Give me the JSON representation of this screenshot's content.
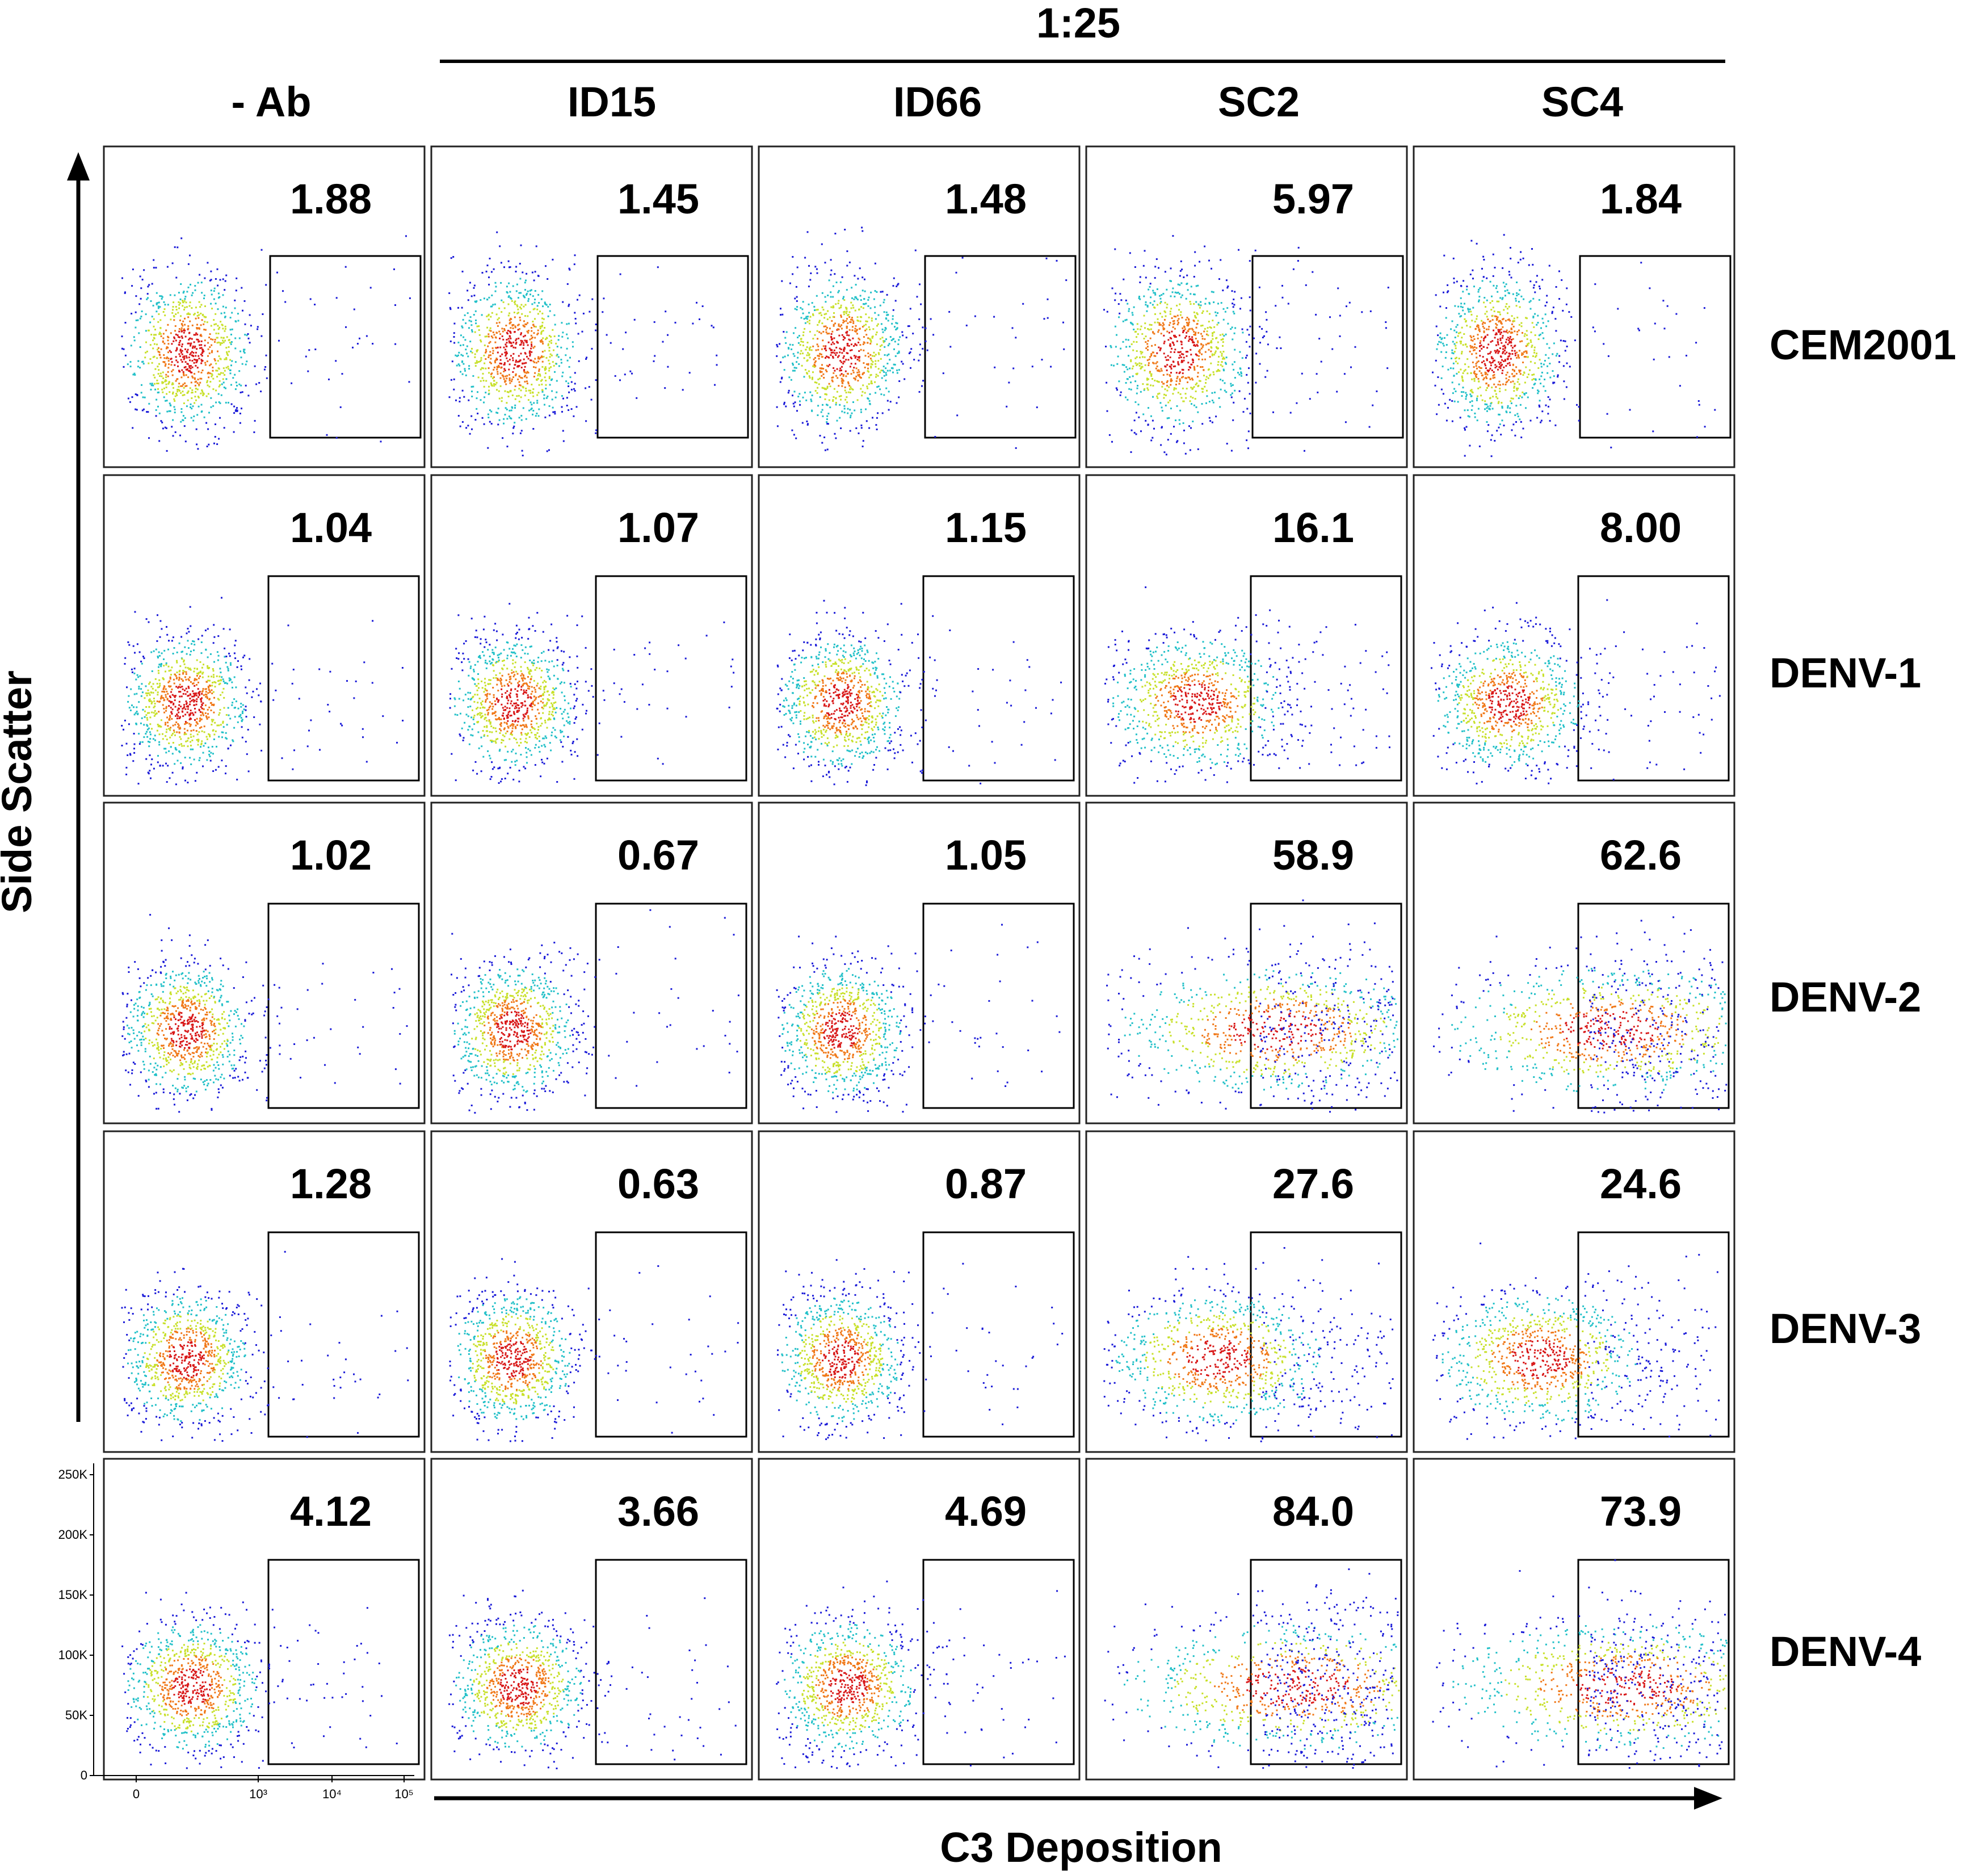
{
  "chart_data": {
    "type": "scatter",
    "title": "",
    "group_label": "1:25",
    "xlabel": "C3 Deposition",
    "ylabel": "Side Scatter",
    "columns": [
      "- Ab",
      "ID15",
      "ID66",
      "SC2",
      "SC4"
    ],
    "rows": [
      "CEM2001",
      "DENV-1",
      "DENV-2",
      "DENV-3",
      "DENV-4"
    ],
    "gate_percent": [
      [
        "1.88",
        "1.45",
        "1.48",
        "5.97",
        "1.84"
      ],
      [
        "1.04",
        "1.07",
        "1.15",
        "16.1",
        "8.00"
      ],
      [
        "1.02",
        "0.67",
        "1.05",
        "58.9",
        "62.6"
      ],
      [
        "1.28",
        "0.63",
        "0.87",
        "27.6",
        "24.6"
      ],
      [
        "4.12",
        "3.66",
        "4.69",
        "84.0",
        "73.9"
      ]
    ],
    "y_ticks": [
      "0",
      "50K",
      "100K",
      "150K",
      "200K",
      "250K"
    ],
    "x_ticks": [
      "0",
      "10³",
      "10⁴",
      "10⁵"
    ]
  },
  "colors": {
    "density_low": "#1a1ad8",
    "density_mid": "#22c0c8",
    "density_high1": "#c8e02a",
    "density_high2": "#f07818",
    "density_peak": "#d81818"
  }
}
